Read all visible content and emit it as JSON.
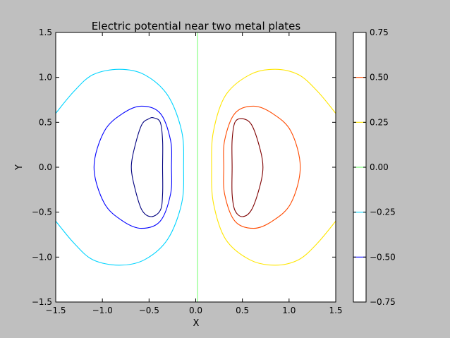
{
  "chart_data": {
    "type": "contour",
    "title": "Electric potential near two metal plates",
    "xlabel": "X",
    "ylabel": "Y",
    "xlim": [
      -1.5,
      1.5
    ],
    "ylim": [
      -1.5,
      1.5
    ],
    "x_ticks": [
      -1.5,
      -1.0,
      -0.5,
      0.0,
      0.5,
      1.0,
      1.5
    ],
    "y_ticks": [
      -1.5,
      -1.0,
      -0.5,
      0.0,
      0.5,
      1.0,
      1.5
    ],
    "x_tick_labels": [
      "−1.5",
      "−1.0",
      "−0.5",
      "0.0",
      "0.5",
      "1.0",
      "1.5"
    ],
    "y_tick_labels": [
      "−1.5",
      "−1.0",
      "−0.5",
      "0.0",
      "0.5",
      "1.0",
      "1.5"
    ],
    "grid": false,
    "colorbar": {
      "range": [
        -0.75,
        0.75
      ],
      "ticks": [
        -0.75,
        -0.5,
        -0.25,
        0.0,
        0.25,
        0.5,
        0.75
      ],
      "tick_labels": [
        "−0.75",
        "−0.50",
        "−0.25",
        "0.00",
        "0.25",
        "0.50",
        "0.75"
      ]
    },
    "levels": [
      {
        "level": -0.6,
        "color": "#00007f",
        "points": [
          [
            -0.45,
            0.55
          ],
          [
            -0.38,
            0.5
          ],
          [
            -0.355,
            0.3
          ],
          [
            -0.355,
            0.0
          ],
          [
            -0.355,
            -0.3
          ],
          [
            -0.38,
            -0.48
          ],
          [
            -0.48,
            -0.55
          ],
          [
            -0.58,
            -0.47
          ],
          [
            -0.66,
            -0.2
          ],
          [
            -0.69,
            0.0
          ],
          [
            -0.66,
            0.2
          ],
          [
            -0.58,
            0.47
          ],
          [
            -0.5,
            0.54
          ]
        ]
      },
      {
        "level": -0.5,
        "color": "#0000ff",
        "points": [
          [
            -0.58,
            0.68
          ],
          [
            -0.38,
            0.6
          ],
          [
            -0.27,
            0.3
          ],
          [
            -0.26,
            0.0
          ],
          [
            -0.27,
            -0.3
          ],
          [
            -0.38,
            -0.6
          ],
          [
            -0.58,
            -0.68
          ],
          [
            -0.78,
            -0.6
          ],
          [
            -0.98,
            -0.4
          ],
          [
            -1.09,
            0.0
          ],
          [
            -0.98,
            0.4
          ],
          [
            -0.78,
            0.6
          ]
        ]
      },
      {
        "level": -0.25,
        "color": "#00d4ff",
        "points": [
          [
            -1.5,
            0.6
          ],
          [
            -1.3,
            0.85
          ],
          [
            -1.1,
            1.03
          ],
          [
            -0.82,
            1.09
          ],
          [
            -0.55,
            1.03
          ],
          [
            -0.3,
            0.8
          ],
          [
            -0.15,
            0.4
          ],
          [
            -0.13,
            0.0
          ],
          [
            -0.15,
            -0.4
          ],
          [
            -0.3,
            -0.8
          ],
          [
            -0.55,
            -1.03
          ],
          [
            -0.82,
            -1.09
          ],
          [
            -1.1,
            -1.03
          ],
          [
            -1.3,
            -0.85
          ],
          [
            -1.5,
            -0.6
          ]
        ]
      },
      {
        "level": 0.0,
        "color": "#7dff7a",
        "points": [
          [
            0.02,
            1.5
          ],
          [
            0.02,
            -1.5
          ]
        ]
      },
      {
        "level": 0.25,
        "color": "#ffe600",
        "points": [
          [
            1.5,
            0.6
          ],
          [
            1.3,
            0.85
          ],
          [
            1.1,
            1.03
          ],
          [
            0.85,
            1.09
          ],
          [
            0.58,
            1.03
          ],
          [
            0.32,
            0.8
          ],
          [
            0.19,
            0.4
          ],
          [
            0.17,
            0.0
          ],
          [
            0.19,
            -0.4
          ],
          [
            0.32,
            -0.8
          ],
          [
            0.58,
            -1.03
          ],
          [
            0.85,
            -1.09
          ],
          [
            1.1,
            -1.03
          ],
          [
            1.3,
            -0.85
          ],
          [
            1.5,
            -0.6
          ]
        ]
      },
      {
        "level": 0.5,
        "color": "#ff4a00",
        "points": [
          [
            0.62,
            0.68
          ],
          [
            0.82,
            0.6
          ],
          [
            1.02,
            0.4
          ],
          [
            1.12,
            0.0
          ],
          [
            1.02,
            -0.4
          ],
          [
            0.82,
            -0.6
          ],
          [
            0.62,
            -0.68
          ],
          [
            0.42,
            -0.6
          ],
          [
            0.31,
            -0.3
          ],
          [
            0.3,
            0.0
          ],
          [
            0.31,
            0.3
          ],
          [
            0.42,
            0.6
          ]
        ]
      },
      {
        "level": 0.6,
        "color": "#7f0000",
        "points": [
          [
            0.5,
            0.54
          ],
          [
            0.6,
            0.47
          ],
          [
            0.69,
            0.2
          ],
          [
            0.72,
            0.0
          ],
          [
            0.69,
            -0.2
          ],
          [
            0.6,
            -0.47
          ],
          [
            0.5,
            -0.55
          ],
          [
            0.42,
            -0.48
          ],
          [
            0.39,
            -0.3
          ],
          [
            0.39,
            0.0
          ],
          [
            0.39,
            0.3
          ],
          [
            0.42,
            0.5
          ]
        ]
      }
    ]
  }
}
